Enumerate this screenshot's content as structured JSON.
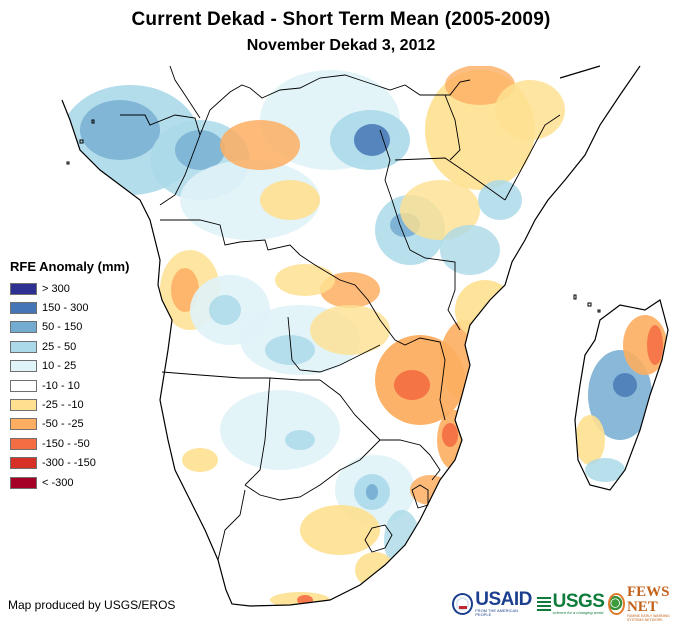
{
  "header": {
    "title": "Current Dekad - Short Term Mean (2005-2009)",
    "subtitle": "November Dekad 3, 2012"
  },
  "legend": {
    "title": "RFE Anomaly (mm)",
    "items": [
      {
        "label": "> 300",
        "color": "#2e3192"
      },
      {
        "label": "150 - 300",
        "color": "#4575b4"
      },
      {
        "label": "50 - 150",
        "color": "#74acd1"
      },
      {
        "label": "25 - 50",
        "color": "#abd9e9"
      },
      {
        "label": "10 - 25",
        "color": "#e0f3f8"
      },
      {
        "label": "-10 - 10",
        "color": "#ffffff"
      },
      {
        "label": "-25 - -10",
        "color": "#fee090"
      },
      {
        "label": "-50 - -25",
        "color": "#fdae61"
      },
      {
        "label": "-150 - -50",
        "color": "#f46d43"
      },
      {
        "label": "-300 - -150",
        "color": "#d73027"
      },
      {
        "label": "< -300",
        "color": "#a50026"
      }
    ]
  },
  "map": {
    "region": "Central, Eastern and Southern Africa",
    "variable": "Rainfall estimate anomaly",
    "border_color": "#000000"
  },
  "footer": {
    "credit": "Map produced by USGS/EROS",
    "logos": [
      {
        "name": "USAID",
        "tagline": "FROM THE AMERICAN PEOPLE"
      },
      {
        "name": "USGS",
        "tagline": "science for a changing world"
      },
      {
        "name": "FEWS NET",
        "tagline": "FAMINE EARLY WARNING SYSTEMS NETWORK"
      }
    ]
  }
}
